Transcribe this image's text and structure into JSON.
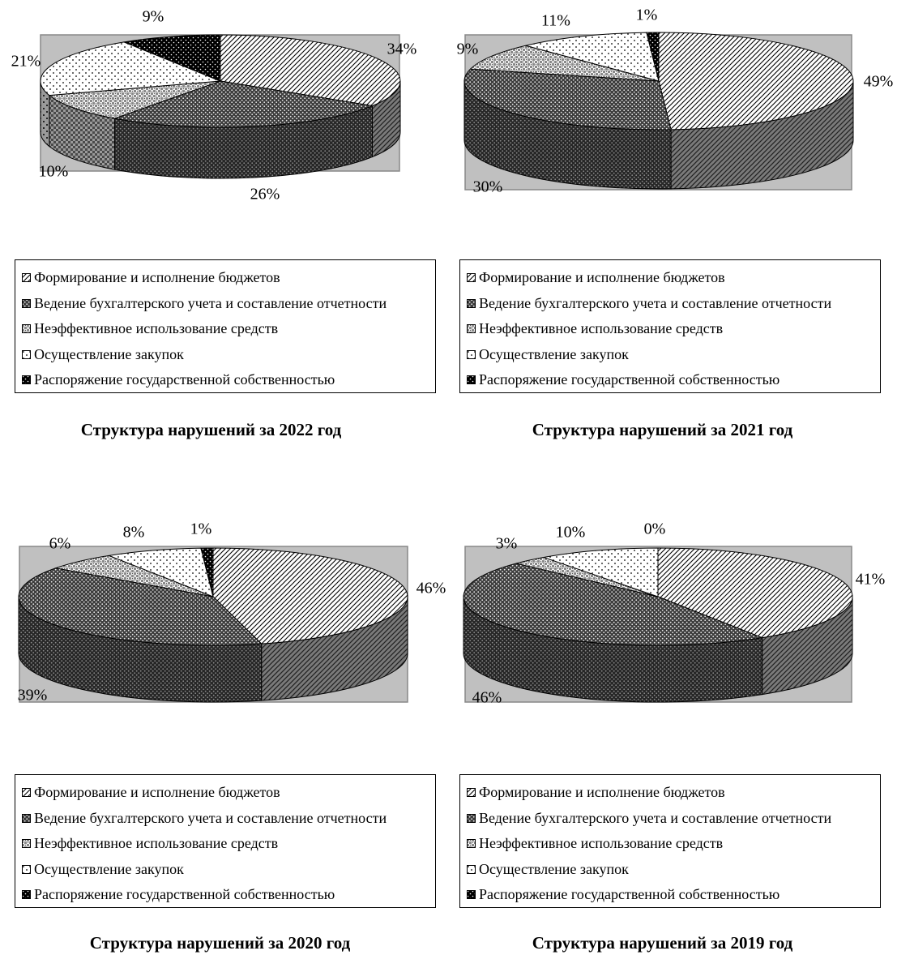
{
  "chart_data": [
    {
      "type": "pie",
      "title": "Структура нарушений за 2022 год",
      "categories": [
        "Формирование и исполнение бюджетов",
        "Ведение бухгалтерского учета и составление отчетности",
        "Неэффективное использование средств",
        "Осуществление закупок",
        "Распоряжение государственной собственностью"
      ],
      "values": [
        34,
        26,
        10,
        21,
        9
      ],
      "labels": [
        "34%",
        "26%",
        "10%",
        "21%",
        "9%"
      ]
    },
    {
      "type": "pie",
      "title": "Структура нарушений за 2021 год",
      "categories": [
        "Формирование и исполнение бюджетов",
        "Ведение бухгалтерского учета и составление отчетности",
        "Неэффективное использование средств",
        "Осуществление закупок",
        "Распоряжение государственной собственностью"
      ],
      "values": [
        49,
        30,
        9,
        11,
        1
      ],
      "labels": [
        "49%",
        "30%",
        "9%",
        "11%",
        "1%"
      ]
    },
    {
      "type": "pie",
      "title": "Структура нарушений за 2020 год",
      "categories": [
        "Формирование и исполнение бюджетов",
        "Ведение бухгалтерского учета и составление отчетности",
        "Неэффективное использование средств",
        "Осуществление закупок",
        "Распоряжение государственной собственностью"
      ],
      "values": [
        46,
        39,
        6,
        8,
        1
      ],
      "labels": [
        "46%",
        "39%",
        "6%",
        "8%",
        "1%"
      ]
    },
    {
      "type": "pie",
      "title": "Структура нарушений за 2019 год",
      "categories": [
        "Формирование и исполнение бюджетов",
        "Ведение бухгалтерского учета и составление отчетности",
        "Неэффективное использование средств",
        "Осуществление закупок",
        "Распоряжение государственной собственностью"
      ],
      "values": [
        41,
        46,
        3,
        10,
        0
      ],
      "labels": [
        "41%",
        "46%",
        "3%",
        "10%",
        "0%"
      ]
    }
  ],
  "legend_items": [
    "Формирование и исполнение бюджетов",
    "Ведение бухгалтерского учета и составление отчетности",
    "Неэффективное использование средств",
    "Осуществление закупок",
    "Распоряжение государственной собственностью"
  ],
  "colors": {
    "plot_background": "#c0c0c0",
    "outline": "#000000",
    "legend_background": "#ffffff"
  }
}
